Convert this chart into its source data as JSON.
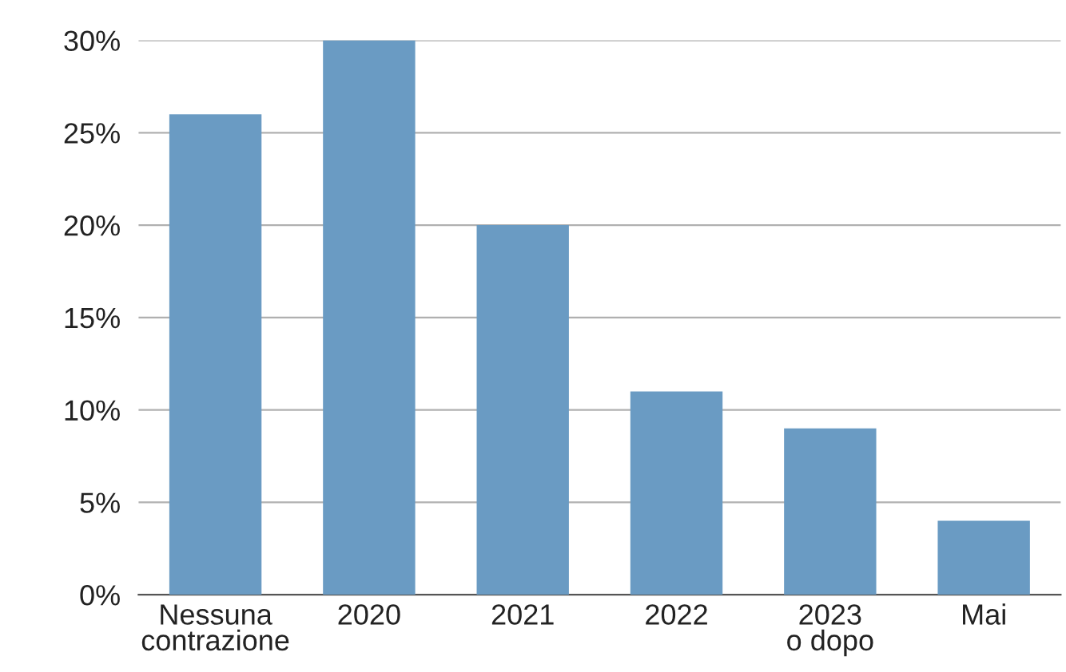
{
  "chart_data": {
    "type": "bar",
    "categories": [
      "Nessuna\ncontrazione",
      "2020",
      "2021",
      "2022",
      "2023\no dopo",
      "Mai"
    ],
    "values": [
      26,
      30,
      20,
      11,
      9,
      4
    ],
    "color": "#6a9bc3",
    "ylim": [
      0,
      30
    ],
    "yticks": [
      {
        "value": 0,
        "label": "0%"
      },
      {
        "value": 5,
        "label": "5%"
      },
      {
        "value": 10,
        "label": "10%"
      },
      {
        "value": 15,
        "label": "15%"
      },
      {
        "value": 20,
        "label": "20%"
      },
      {
        "value": 25,
        "label": "25%"
      },
      {
        "value": 30,
        "label": "30%"
      }
    ],
    "grid": "y"
  }
}
